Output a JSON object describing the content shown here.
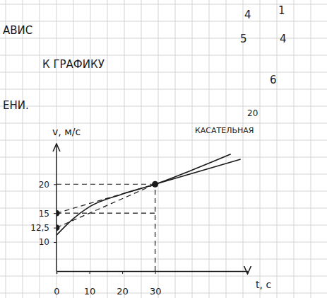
{
  "chart_data": {
    "type": "line",
    "x_label": "t, с",
    "y_label": "v, м/с",
    "xlim": [
      0,
      58
    ],
    "ylim": [
      5,
      27
    ],
    "xticks": [
      0,
      10,
      20,
      30
    ],
    "yticks": [
      10,
      {
        "value": 12.5,
        "label": "12,5"
      },
      15,
      20
    ],
    "series": [
      {
        "type": "line",
        "line_style": "solid",
        "x": [
          0,
          5,
          10,
          20,
          30,
          41,
          53
        ],
        "values": [
          11.2,
          14,
          16.1,
          18.3,
          20,
          22.4,
          25.2
        ]
      },
      {
        "type": "line",
        "line_style": "dashed",
        "x": [
          0,
          30
        ],
        "values": [
          15,
          20
        ]
      },
      {
        "type": "line",
        "line_style": "solid",
        "x": [
          30,
          56
        ],
        "values": [
          20,
          24.3
        ]
      },
      {
        "type": "line",
        "line_style": "dashed",
        "x": [
          0,
          30
        ],
        "values": [
          12.5,
          20
        ]
      },
      {
        "type": "line",
        "line_style": "dashed",
        "x": [
          0,
          30
        ],
        "values": [
          20,
          20
        ]
      },
      {
        "type": "line",
        "line_style": "dashed",
        "x": [
          0,
          30
        ],
        "values": [
          15,
          15
        ]
      },
      {
        "type": "line",
        "line_style": "dashed",
        "x": [
          30,
          30
        ],
        "values": [
          5,
          20
        ]
      },
      {
        "type": "scatter",
        "marker": "circle",
        "x": [
          0,
          0,
          30
        ],
        "values": [
          15,
          12.5,
          20
        ]
      }
    ],
    "annotations": [
      "КАСАТЕЛЬНАЯ",
      "АВИС",
      "К ГРАФИКУ",
      "ЕНИ.",
      "4",
      "1",
      "5",
      "4",
      "6",
      "20"
    ]
  }
}
